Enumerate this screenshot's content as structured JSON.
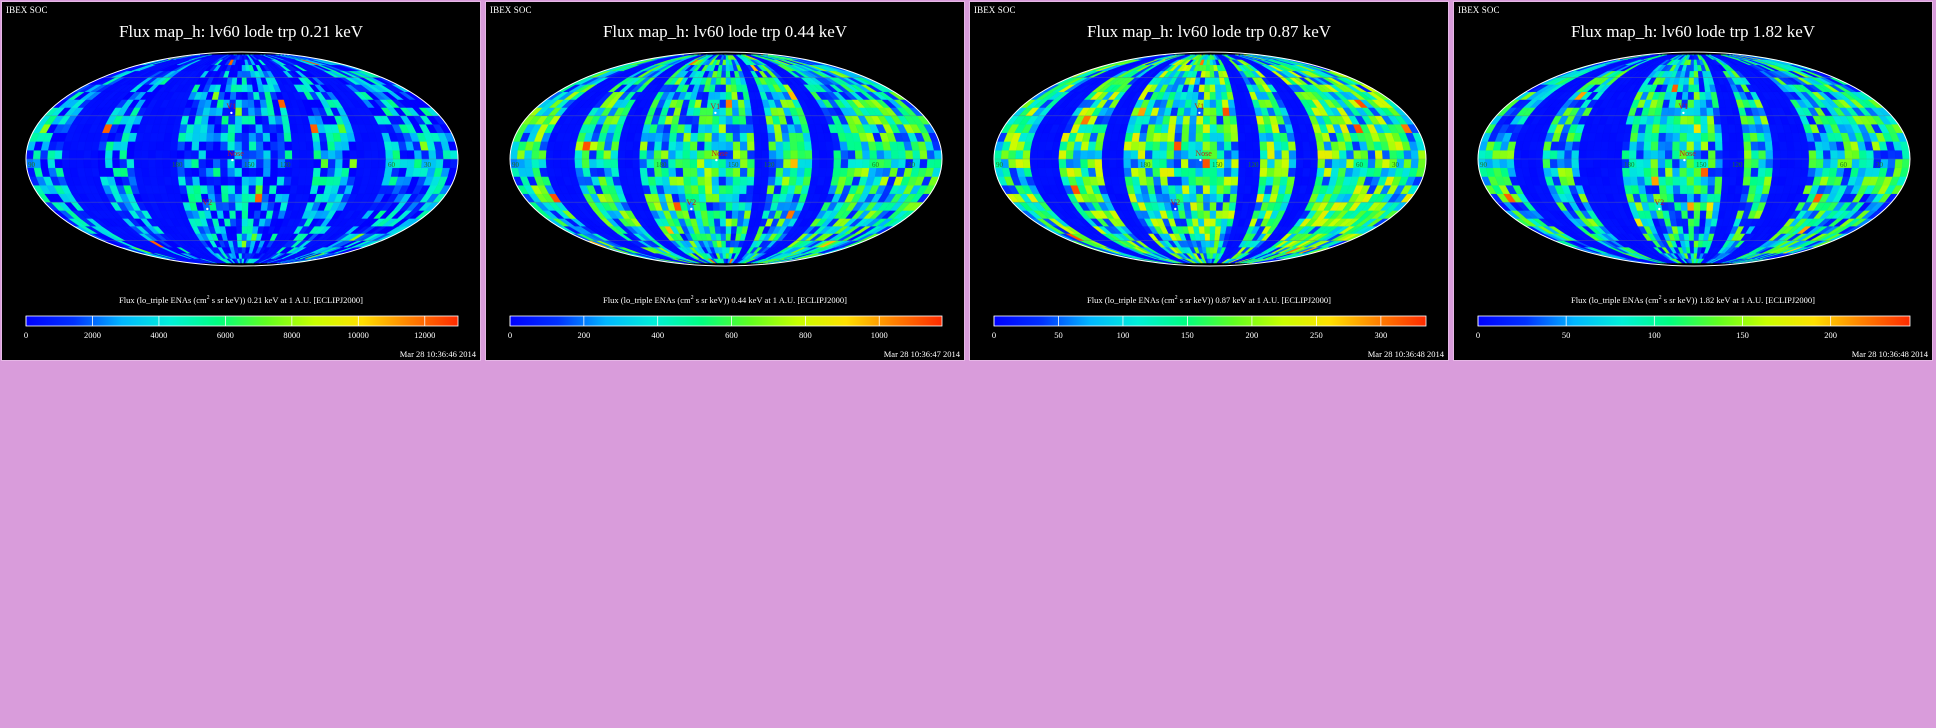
{
  "colors": {
    "background": "#d99cdb",
    "panel": "#000000",
    "panel_border": "#e6b8e6",
    "colormap": [
      "#0000ff",
      "#0032ff",
      "#00b6ff",
      "#00f0d8",
      "#00ff80",
      "#60ff20",
      "#c8ff00",
      "#ffe000",
      "#ff8000",
      "#ff2a00"
    ]
  },
  "chart_data": [
    {
      "type": "heatmap",
      "projection": "mollweide",
      "watermark": "IBEX SOC",
      "title": "Flux map_h: lv60 lode trp 0.21 keV",
      "caption_pre": "Flux (lo_triple ENAs (cm",
      "caption_sup": "2",
      "caption_post": " s sr keV)) 0.21 keV at 1 A.U. [ECLIPJ2000]",
      "colorbar": {
        "min": 0,
        "max": 13000,
        "ticks": [
          0,
          2000,
          4000,
          6000,
          8000,
          10000,
          12000
        ]
      },
      "timestamp": "Mar 28 10:36:46 2014",
      "longitude_labels": [
        "90",
        "180",
        "150",
        "120",
        "60",
        "30"
      ],
      "markers": [
        "V1",
        "Nose",
        "V2"
      ],
      "level_mean": 0.1,
      "level_spread": 0.28,
      "hotspots": [
        0.93,
        0.55,
        0.6
      ],
      "empty_bands": [
        [
          -150,
          -118
        ],
        [
          -92,
          -55
        ],
        [
          40,
          58
        ],
        [
          96,
          120
        ]
      ]
    },
    {
      "type": "heatmap",
      "projection": "mollweide",
      "watermark": "IBEX SOC",
      "title": "Flux map_h: lv60 lode trp 0.44 keV",
      "caption_pre": "Flux (lo_triple ENAs (cm",
      "caption_sup": "2",
      "caption_post": " s sr keV)) 0.44 keV at 1 A.U. [ECLIPJ2000]",
      "colorbar": {
        "min": 0,
        "max": 1170,
        "ticks": [
          0,
          200,
          400,
          600,
          800,
          1000
        ]
      },
      "timestamp": "Mar 28 10:36:47 2014",
      "longitude_labels": [
        "90",
        "180",
        "150",
        "120",
        "60",
        "30"
      ],
      "markers": [
        "V1",
        "Nose",
        "V2"
      ],
      "level_mean": 0.28,
      "level_spread": 0.3,
      "hotspots": [
        0.95,
        0.9,
        0.82
      ],
      "empty_bands": [
        [
          -150,
          -125
        ],
        [
          -92,
          -70
        ],
        [
          22,
          38
        ],
        [
          70,
          92
        ]
      ]
    },
    {
      "type": "heatmap",
      "projection": "mollweide",
      "watermark": "IBEX SOC",
      "title": "Flux map_h: lv60 lode trp 0.87 keV",
      "caption_pre": "Flux (lo_triple ENAs (cm",
      "caption_sup": "2",
      "caption_post": " s sr keV)) 0.87 keV at 1 A.U. [ECLIPJ2000]",
      "colorbar": {
        "min": 0,
        "max": 335,
        "ticks": [
          0,
          50,
          100,
          150,
          200,
          250,
          300
        ]
      },
      "timestamp": "Mar 28 10:36:48 2014",
      "longitude_labels": [
        "90",
        "180",
        "150",
        "120",
        "60",
        "30"
      ],
      "markers": [
        "V1",
        "Nose",
        "V2"
      ],
      "level_mean": 0.34,
      "level_spread": 0.32,
      "hotspots": [
        0.95,
        0.9,
        0.85
      ],
      "empty_bands": [
        [
          -150,
          -128
        ],
        [
          -92,
          -72
        ],
        [
          22,
          40
        ],
        [
          70,
          92
        ]
      ]
    },
    {
      "type": "heatmap",
      "projection": "mollweide",
      "watermark": "IBEX SOC",
      "title": "Flux map_h: lv60 lode trp 1.82 keV",
      "caption_pre": "Flux (lo_triple ENAs (cm",
      "caption_sup": "2",
      "caption_post": " s sr keV)) 1.82 keV at 1 A.U. [ECLIPJ2000]",
      "colorbar": {
        "min": 0,
        "max": 245,
        "ticks": [
          0,
          50,
          100,
          150,
          200
        ]
      },
      "timestamp": "Mar 28 10:36:48 2014",
      "longitude_labels": [
        "90",
        "180",
        "150",
        "120",
        "60",
        "30"
      ],
      "markers": [
        "V1",
        "Nose",
        "V2"
      ],
      "level_mean": 0.26,
      "level_spread": 0.3,
      "hotspots": [
        0.93,
        0.85,
        0.75
      ],
      "empty_bands": [
        [
          -150,
          -124
        ],
        [
          -94,
          -62
        ],
        [
          22,
          40
        ],
        [
          66,
          96
        ]
      ]
    }
  ]
}
